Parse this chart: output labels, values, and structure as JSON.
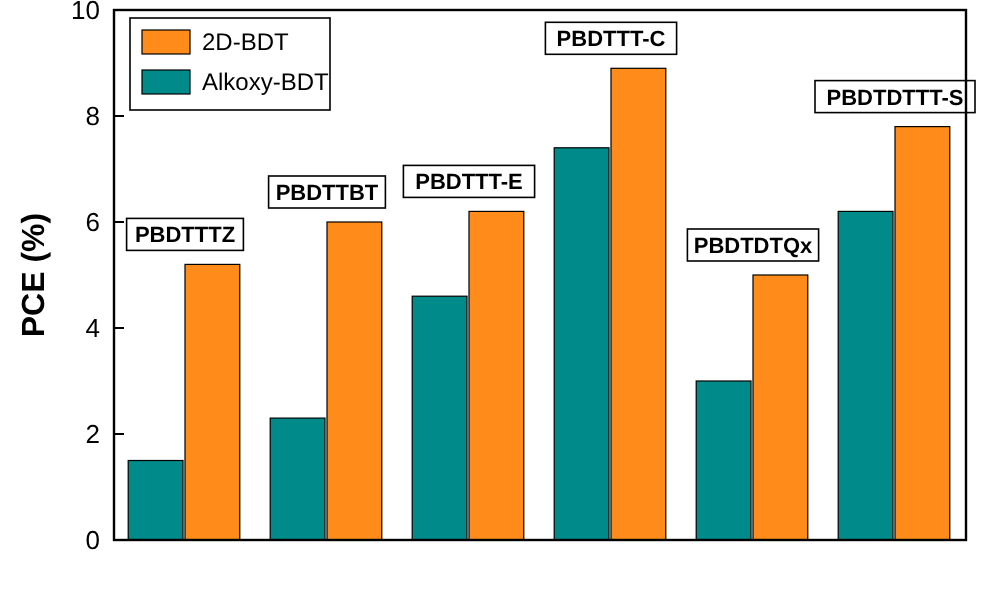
{
  "chart_data": {
    "type": "bar",
    "ylabel": "PCE (%)",
    "categories": [
      "PBDTTTZ",
      "PBDTTBT",
      "PBDTTT-E",
      "PBDTTT-C",
      "PBDTDTQx",
      "PBDTDTTT-S"
    ],
    "series": [
      {
        "name": "Alkoxy-BDT",
        "color": "#008b8b",
        "values": [
          1.5,
          2.3,
          4.6,
          7.4,
          3.0,
          6.2
        ]
      },
      {
        "name": "2D-BDT",
        "color": "#ff8c1a",
        "values": [
          5.2,
          6.0,
          6.2,
          8.9,
          5.0,
          7.8
        ]
      }
    ],
    "ylim": [
      0,
      10
    ],
    "yticks": [
      0,
      2,
      4,
      6,
      8,
      10
    ],
    "legend": "top left"
  }
}
